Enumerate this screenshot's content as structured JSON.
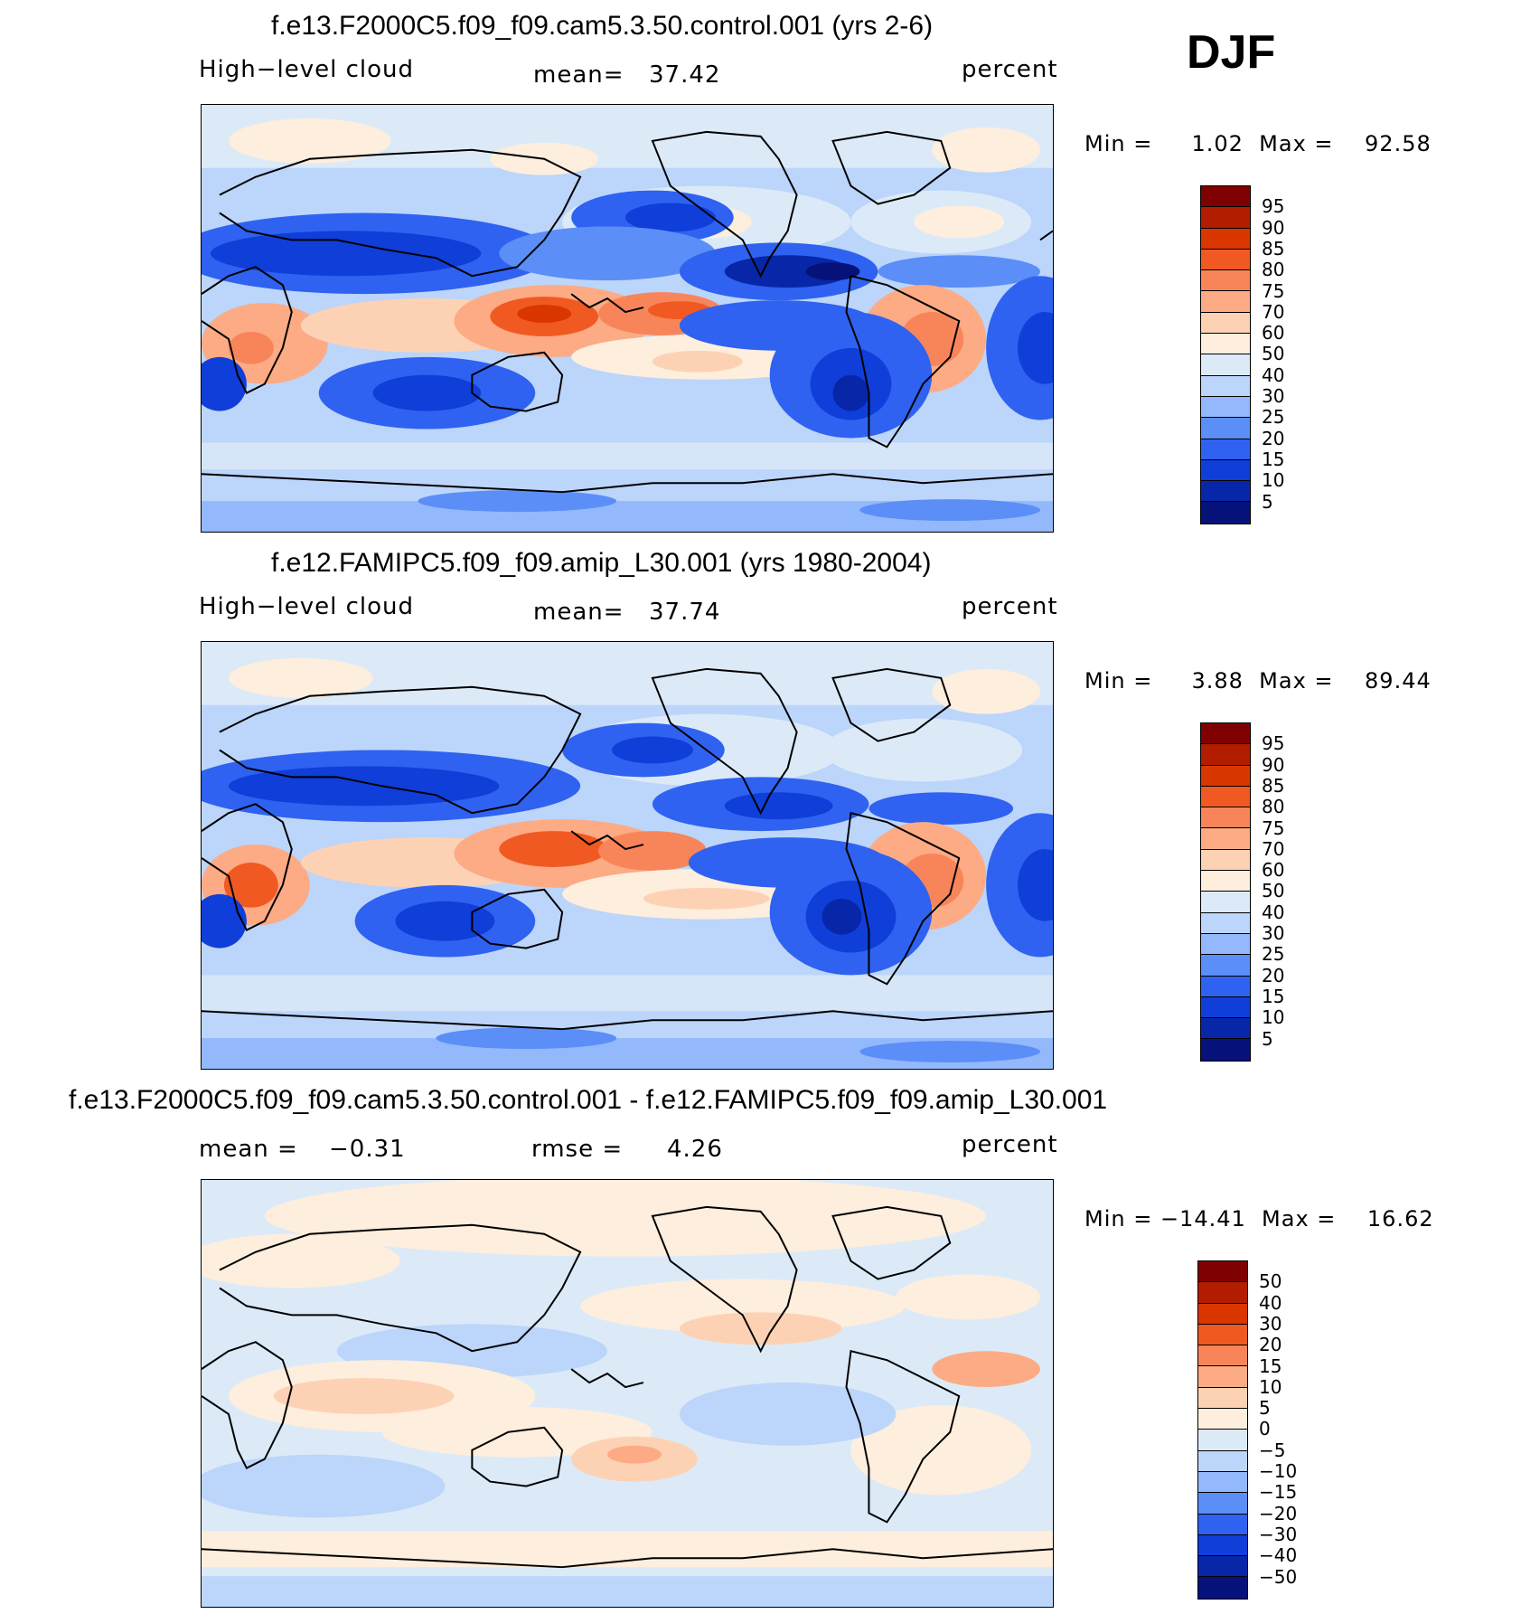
{
  "season": "DJF",
  "panels": [
    {
      "title": "f.e13.F2000C5.f09_f09.cam5.3.50.control.001 (yrs 2-6)",
      "left_label": "High−level cloud",
      "mid_label": "mean=",
      "mid_value": "37.42",
      "units": "percent",
      "minmax": "Min =     1.02  Max =    92.58",
      "colorbar": [
        "95",
        "90",
        "85",
        "80",
        "75",
        "70",
        "60",
        "50",
        "40",
        "30",
        "25",
        "20",
        "15",
        "10",
        "5"
      ],
      "colors": [
        "#7f0000",
        "#b21d00",
        "#d93600",
        "#f05a22",
        "#f8855a",
        "#fcab84",
        "#fdd2b4",
        "#fdeedd",
        "#dceaf8",
        "#bcd5fa",
        "#93b8fb",
        "#5b8ef7",
        "#2f62f0",
        "#0f3ed9",
        "#0826a8",
        "#06127a"
      ]
    },
    {
      "title": "f.e12.FAMIPC5.f09_f09.amip_L30.001 (yrs 1980-2004)",
      "left_label": "High−level cloud",
      "mid_label": "mean=",
      "mid_value": "37.74",
      "units": "percent",
      "minmax": "Min =     3.88  Max =    89.44",
      "colorbar": [
        "95",
        "90",
        "85",
        "80",
        "75",
        "70",
        "60",
        "50",
        "40",
        "30",
        "25",
        "20",
        "15",
        "10",
        "5"
      ],
      "colors": [
        "#7f0000",
        "#b21d00",
        "#d93600",
        "#f05a22",
        "#f8855a",
        "#fcab84",
        "#fdd2b4",
        "#fdeedd",
        "#dceaf8",
        "#bcd5fa",
        "#93b8fb",
        "#5b8ef7",
        "#2f62f0",
        "#0f3ed9",
        "#0826a8",
        "#06127a"
      ]
    },
    {
      "title": "f.e13.F2000C5.f09_f09.cam5.3.50.control.001 - f.e12.FAMIPC5.f09_f09.amip_L30.001",
      "left_label": "mean =",
      "left_value": "−0.31",
      "mid_label": "rmse =",
      "mid_value": "4.26",
      "units": "percent",
      "minmax": "Min = −14.41  Max =    16.62",
      "colorbar": [
        "50",
        "40",
        "30",
        "20",
        "15",
        "10",
        "5",
        "0",
        "−5",
        "−10",
        "−15",
        "−20",
        "−30",
        "−40",
        "−50"
      ],
      "colors": [
        "#7f0000",
        "#b21d00",
        "#d93600",
        "#f05a22",
        "#f8855a",
        "#fcab84",
        "#fdd2b4",
        "#fdeedd",
        "#dceaf8",
        "#bcd5fa",
        "#93b8fb",
        "#5b8ef7",
        "#2f62f0",
        "#0f3ed9",
        "#0826a8",
        "#06127a"
      ]
    }
  ]
}
